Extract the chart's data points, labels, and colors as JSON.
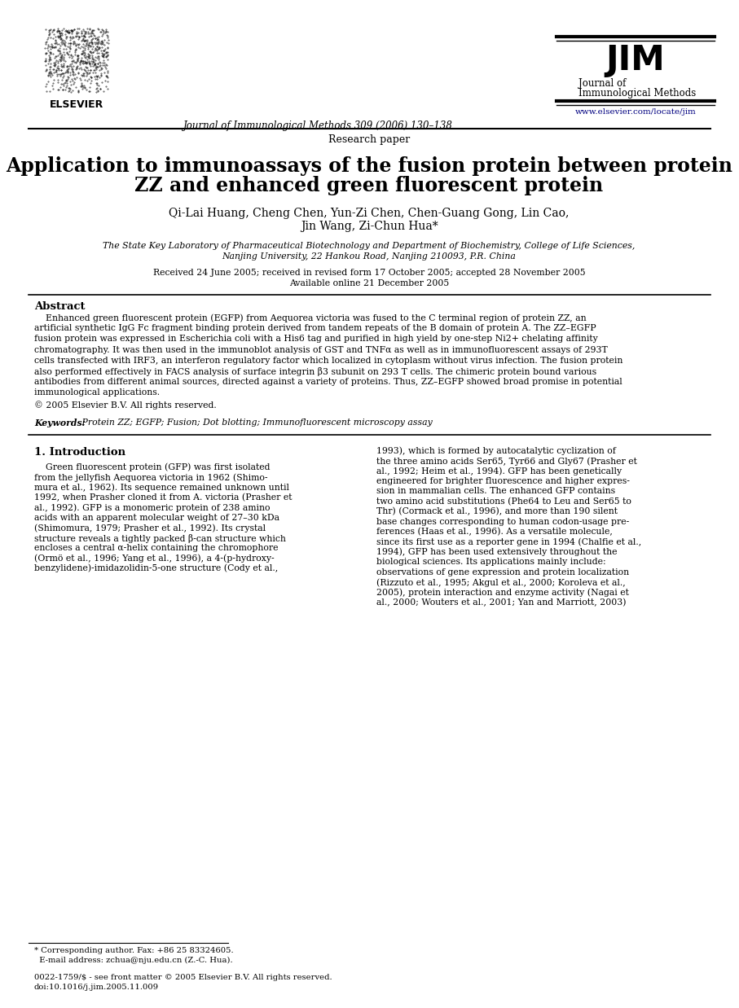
{
  "bg_color": "#ffffff",
  "header": {
    "elsevier_text": "ELSEVIER",
    "journal_center": "Journal of Immunological Methods 309 (2006) 130–138",
    "jim_title": "JIM",
    "jim_subtitle1": "Journal of",
    "jim_subtitle2": "Immunological Methods",
    "website": "www.elsevier.com/locate/jim"
  },
  "paper_type": "Research paper",
  "title_line1": "Application to immunoassays of the fusion protein between protein",
  "title_line2": "ZZ and enhanced green fluorescent protein",
  "authors_line1": "Qi-Lai Huang, Cheng Chen, Yun-Zi Chen, Chen-Guang Gong, Lin Cao,",
  "authors_line2": "Jin Wang, Zi-Chun Hua*",
  "affil_line1": "The State Key Laboratory of Pharmaceutical Biotechnology and Department of Biochemistry, College of Life Sciences,",
  "affil_line2": "Nanjing University, 22 Hankou Road, Nanjing 210093, P.R. China",
  "dates_line1": "Received 24 June 2005; received in revised form 17 October 2005; accepted 28 November 2005",
  "dates_line2": "Available online 21 December 2005",
  "abstract_heading": "Abstract",
  "abstract_text": "    Enhanced green fluorescent protein (EGFP) from Aequorea victoria was fused to the C terminal region of protein ZZ, an\nartificial synthetic IgG Fc fragment binding protein derived from tandem repeats of the B domain of protein A. The ZZ–EGFP\nfusion protein was expressed in Escherichia coli with a His6 tag and purified in high yield by one-step Ni2+ chelating affinity\nchromatography. It was then used in the immunoblot analysis of GST and TNFα as well as in immunofluorescent assays of 293T\ncells transfected with IRF3, an interferon regulatory factor which localized in cytoplasm without virus infection. The fusion protein\nalso performed effectively in FACS analysis of surface integrin β3 subunit on 293 T cells. The chimeric protein bound various\nantibodies from different animal sources, directed against a variety of proteins. Thus, ZZ–EGFP showed broad promise in potential\nimmunological applications.",
  "copyright": "© 2005 Elsevier B.V. All rights reserved.",
  "keywords_label": "Keywords:",
  "keywords_text": " Protein ZZ; EGFP; Fusion; Dot blotting; Immunofluorescent microscopy assay",
  "section1_heading": "1. Introduction",
  "intro_left": "    Green fluorescent protein (GFP) was first isolated\nfrom the jellyfish Aequorea victoria in 1962 (Shimo-\nmura et al., 1962). Its sequence remained unknown until\n1992, when Prasher cloned it from A. victoria (Prasher et\nal., 1992). GFP is a monomeric protein of 238 amino\nacids with an apparent molecular weight of 27–30 kDa\n(Shimomura, 1979; Prasher et al., 1992). Its crystal\nstructure reveals a tightly packed β-can structure which\nencloses a central α-helix containing the chromophore\n(Ormö et al., 1996; Yang et al., 1996), a 4-(p-hydroxy-\nbenzylidene)-imidazolidin-5-one structure (Cody et al.,",
  "intro_right": "1993), which is formed by autocatalytic cyclization of\nthe three amino acids Ser65, Tyr66 and Gly67 (Prasher et\nal., 1992; Heim et al., 1994). GFP has been genetically\nengineered for brighter fluorescence and higher expres-\nsion in mammalian cells. The enhanced GFP contains\ntwo amino acid substitutions (Phe64 to Leu and Ser65 to\nThr) (Cormack et al., 1996), and more than 190 silent\nbase changes corresponding to human codon-usage pre-\nferences (Haas et al., 1996). As a versatile molecule,\nsince its first use as a reporter gene in 1994 (Chalfie et al.,\n1994), GFP has been used extensively throughout the\nbiological sciences. Its applications mainly include:\nobservations of gene expression and protein localization\n(Rizzuto et al., 1995; Akgul et al., 2000; Koroleva et al.,\n2005), protein interaction and enzyme activity (Nagai et\nal., 2000; Wouters et al., 2001; Yan and Marriott, 2003)",
  "footnote_star": "* Corresponding author. Fax: +86 25 83324605.",
  "footnote_email": "  E-mail address: zchua@nju.edu.cn (Z.-C. Hua).",
  "footnote_issn": "0022-1759/$ - see front matter © 2005 Elsevier B.V. All rights reserved.",
  "footnote_doi": "doi:10.1016/j.jim.2005.11.009",
  "link_color": "#000080"
}
